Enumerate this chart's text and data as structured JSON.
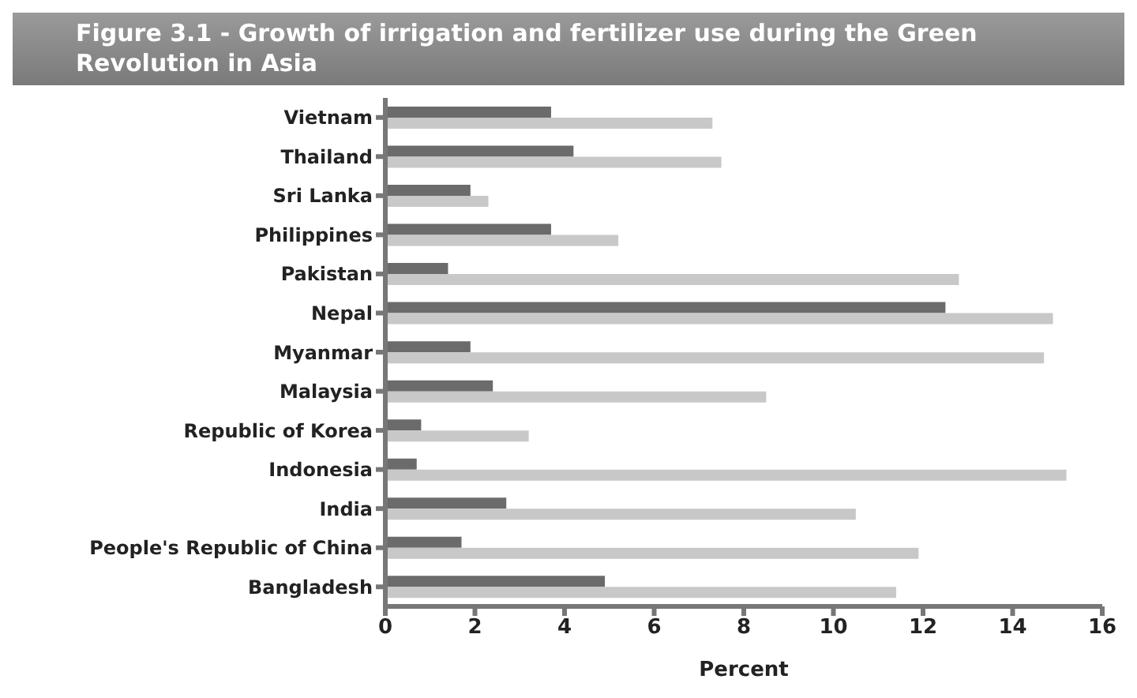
{
  "chart_data": {
    "type": "bar",
    "orientation": "horizontal",
    "title": "Figure 3.1 - Growth of irrigation and fertilizer use during the Green Revolution in Asia",
    "xlabel": "Percent",
    "categories": [
      "Vietnam",
      "Thailand",
      "Sri Lanka",
      "Philippines",
      "Pakistan",
      "Nepal",
      "Myanmar",
      "Malaysia",
      "Republic of Korea",
      "Indonesia",
      "India",
      "People's Republic of China",
      "Bangladesh"
    ],
    "series": [
      {
        "color": "#6b6b6b",
        "values": [
          3.7,
          4.2,
          1.9,
          3.7,
          1.4,
          12.5,
          1.9,
          2.4,
          0.8,
          0.7,
          2.7,
          1.7,
          4.9
        ]
      },
      {
        "color": "#c8c8c8",
        "values": [
          7.3,
          7.5,
          2.3,
          5.2,
          12.8,
          14.9,
          14.7,
          8.5,
          3.2,
          15.2,
          10.5,
          11.9,
          11.4
        ]
      }
    ],
    "xlim": [
      0,
      16
    ],
    "xticks": [
      0,
      2,
      4,
      6,
      8,
      10,
      12,
      14,
      16
    ],
    "grid": false,
    "legend": false
  }
}
